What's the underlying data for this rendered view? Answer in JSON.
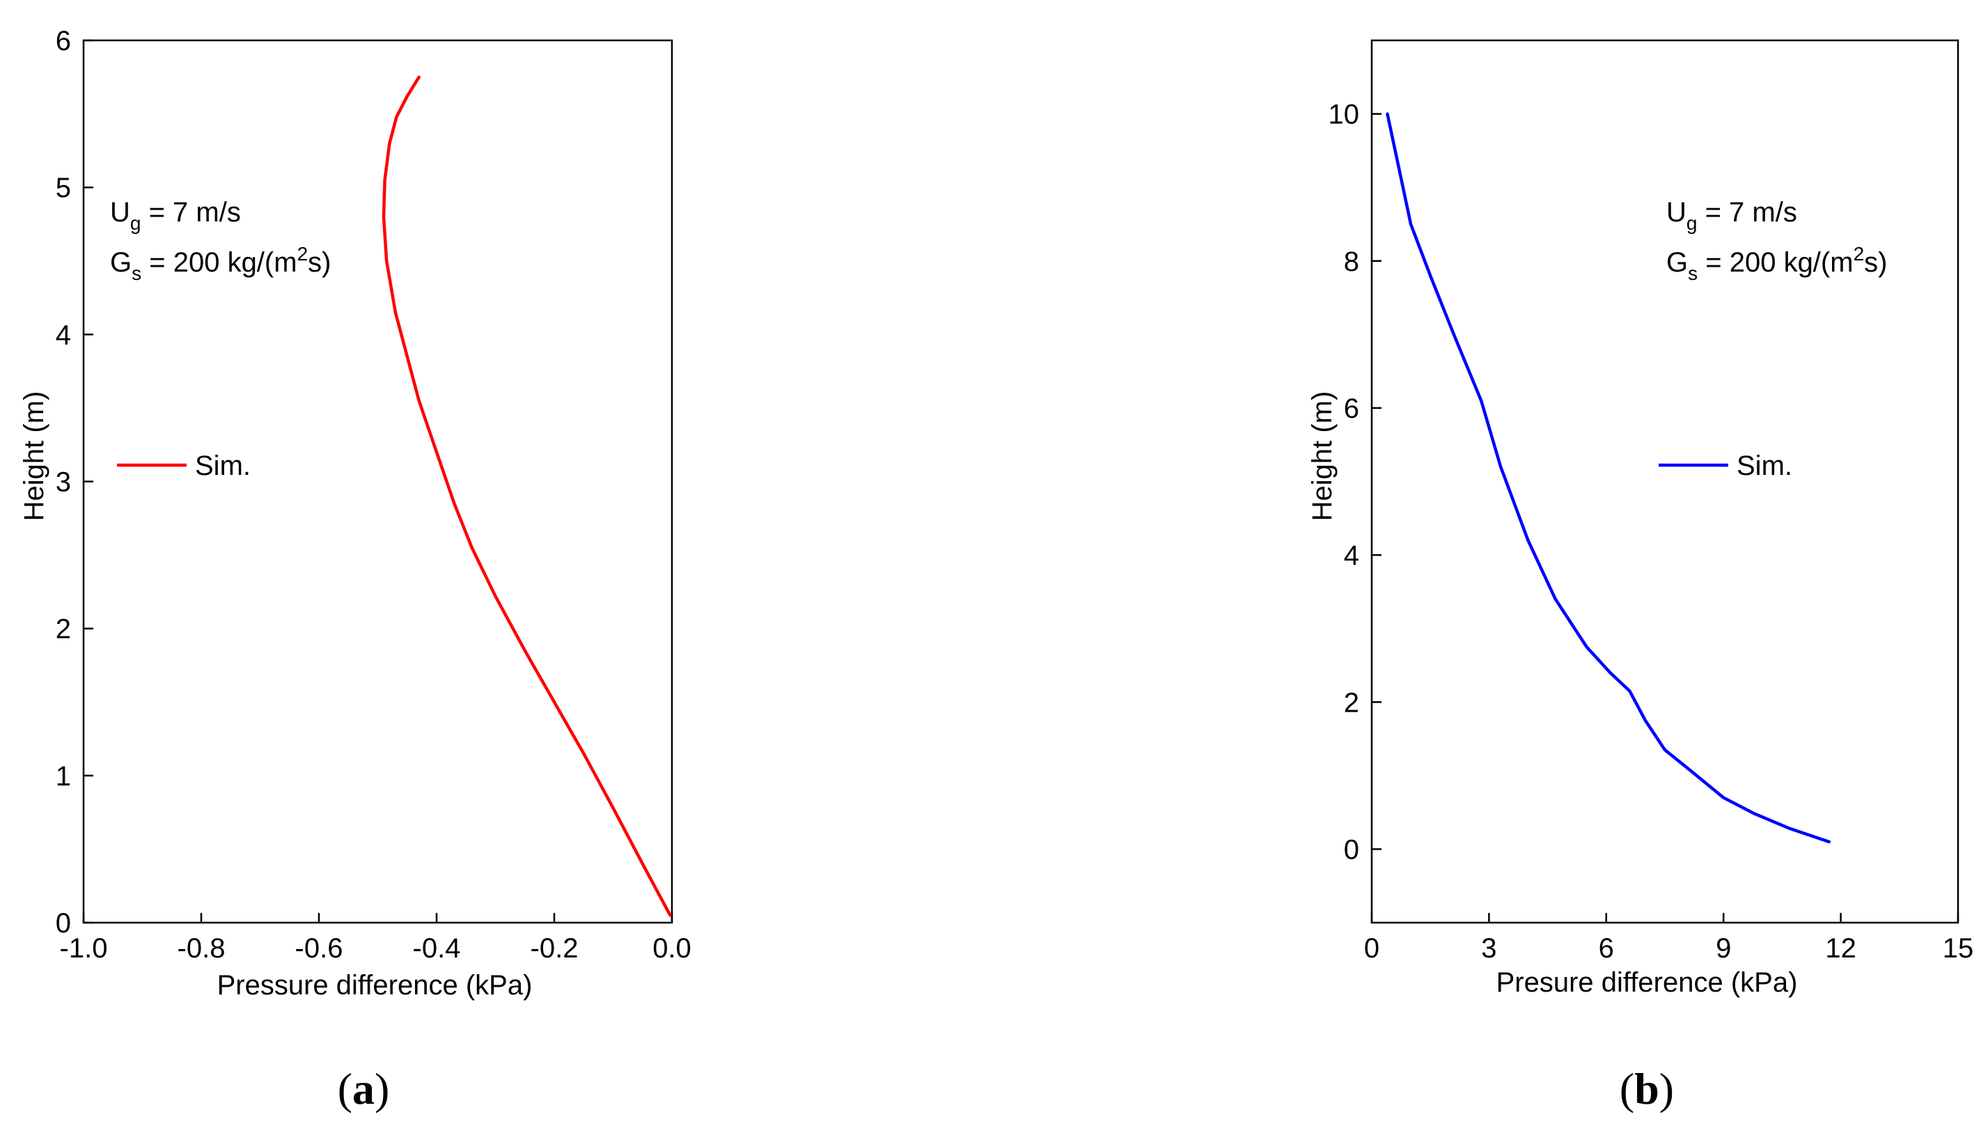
{
  "chart_data": [
    {
      "type": "line",
      "panel_label": "(a)",
      "xlabel": "Pressure difference (kPa)",
      "ylabel": "Height  (m)",
      "xlim": [
        -1.0,
        0.0
      ],
      "ylim": [
        0,
        6
      ],
      "xticks": [
        -1.0,
        -0.8,
        -0.6,
        -0.4,
        -0.2,
        0.0
      ],
      "xtick_labels": [
        "-1.0",
        "-0.8",
        "-0.6",
        "-0.4",
        "-0.2",
        "0.0"
      ],
      "yticks": [
        0,
        1,
        2,
        3,
        4,
        5,
        6
      ],
      "ytick_labels": [
        "0",
        "1",
        "2",
        "3",
        "4",
        "5",
        "6"
      ],
      "annotations": [
        {
          "main": "U",
          "sub": "g",
          "rest": " = 7 m/s"
        },
        {
          "main": "G",
          "sub": "s",
          "mid": " = 200 kg/(m",
          "sup": "2",
          "rest": "s)"
        }
      ],
      "legend": {
        "label": "Sim.",
        "position": "center-left"
      },
      "series": [
        {
          "name": "Sim.",
          "color": "#ff0000",
          "x": [
            -0.003,
            -0.05,
            -0.1,
            -0.15,
            -0.2,
            -0.25,
            -0.3,
            -0.34,
            -0.37,
            -0.4,
            -0.43,
            -0.45,
            -0.47,
            -0.485,
            -0.49,
            -0.488,
            -0.48,
            -0.468,
            -0.45,
            -0.43
          ],
          "y": [
            0.05,
            0.4,
            0.78,
            1.15,
            1.5,
            1.85,
            2.22,
            2.55,
            2.85,
            3.2,
            3.55,
            3.85,
            4.15,
            4.5,
            4.8,
            5.05,
            5.3,
            5.48,
            5.62,
            5.75
          ]
        }
      ]
    },
    {
      "type": "line",
      "panel_label": "(b)",
      "xlabel": "Presure difference (kPa)",
      "ylabel": "Height  (m)",
      "xlim": [
        0,
        15
      ],
      "ylim": [
        -1,
        11
      ],
      "xticks": [
        0,
        3,
        6,
        9,
        12,
        15
      ],
      "xtick_labels": [
        "0",
        "3",
        "6",
        "9",
        "12",
        "15"
      ],
      "yticks": [
        0,
        2,
        4,
        6,
        8,
        10
      ],
      "ytick_labels": [
        "0",
        "2",
        "4",
        "6",
        "8",
        "10"
      ],
      "annotations": [
        {
          "main": "U",
          "sub": "g",
          "rest": " = 7 m/s"
        },
        {
          "main": "G",
          "sub": "s",
          "mid": " = 200 kg/(m",
          "sup": "2",
          "rest": "s)"
        }
      ],
      "legend": {
        "label": "Sim.",
        "position": "center-right"
      },
      "series": [
        {
          "name": "Sim.",
          "color": "#0000ff",
          "x": [
            0.4,
            0.6,
            1.0,
            1.5,
            2.1,
            2.8,
            3.3,
            4.0,
            4.7,
            5.5,
            6.1,
            6.6,
            7.0,
            7.5,
            8.2,
            9.0,
            9.8,
            10.7,
            11.7
          ],
          "y": [
            10.0,
            9.5,
            8.5,
            7.8,
            7.0,
            6.1,
            5.2,
            4.2,
            3.4,
            2.75,
            2.4,
            2.15,
            1.75,
            1.35,
            1.05,
            0.7,
            0.48,
            0.28,
            0.1
          ]
        }
      ]
    }
  ]
}
